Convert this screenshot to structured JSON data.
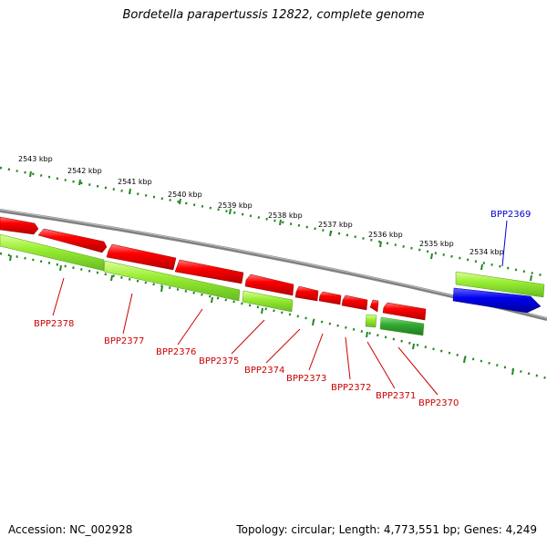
{
  "title": "Bordetella parapertussis 12822, complete genome",
  "footer": {
    "accession": "Accession: NC_002928",
    "summary": "Topology: circular; Length: 4,773,551 bp; Genes: 4,249"
  },
  "colors": {
    "backbone": "#808080",
    "reverse_gene": "#ff0000",
    "forward_gene": "#0000ee",
    "feature_lime": "#99ee33",
    "feature_green": "#33aa33",
    "ruler": "#228822",
    "label_red": "#cc0000",
    "label_blue": "#0000cc"
  },
  "ruler_labels": [
    "2543 kbp",
    "2542 kbp",
    "2541 kbp",
    "2540 kbp",
    "2539 kbp",
    "2538 kbp",
    "2537 kbp",
    "2536 kbp",
    "2535 kbp",
    "2534 kbp"
  ],
  "gene_labels": {
    "bpp2369": "BPP2369",
    "bpp2370": "BPP2370",
    "bpp2371": "BPP2371",
    "bpp2372": "BPP2372",
    "bpp2373": "BPP2373",
    "bpp2374": "BPP2374",
    "bpp2375": "BPP2375",
    "bpp2376": "BPP2376",
    "bpp2377": "BPP2377",
    "bpp2378": "BPP2378"
  }
}
